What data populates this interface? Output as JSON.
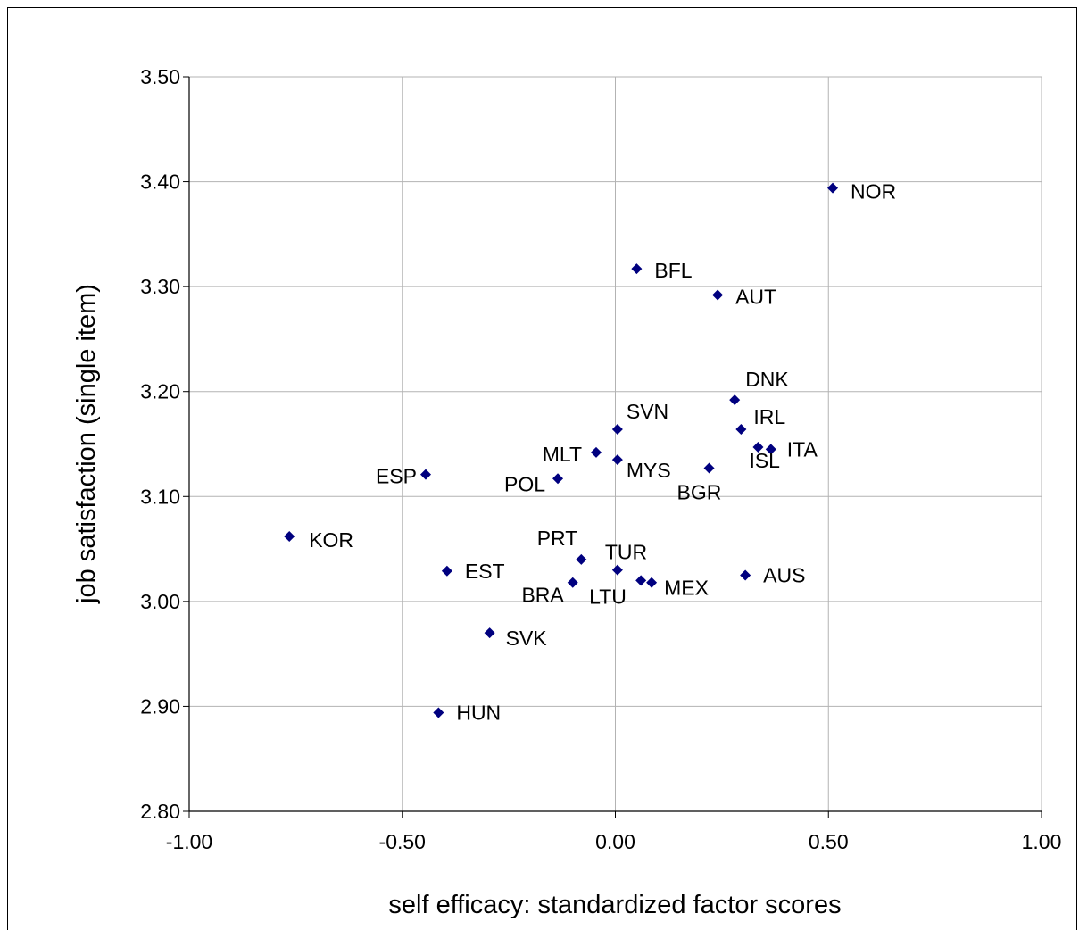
{
  "chart_data": {
    "type": "scatter",
    "xlabel": "self efficacy: standardized factor scores",
    "ylabel": "job satisfaction (single item)",
    "xlim": [
      -1.0,
      1.0
    ],
    "ylim": [
      2.8,
      3.5
    ],
    "x_ticks": [
      -1.0,
      -0.5,
      0.0,
      0.5,
      1.0
    ],
    "x_tick_labels": [
      "-1.00",
      "-0.50",
      "0.00",
      "0.50",
      "1.00"
    ],
    "y_ticks": [
      2.8,
      2.9,
      3.0,
      3.1,
      3.2,
      3.3,
      3.4,
      3.5
    ],
    "y_tick_labels": [
      "2.80",
      "2.90",
      "3.00",
      "3.10",
      "3.20",
      "3.30",
      "3.40",
      "3.50"
    ],
    "grid": true,
    "marker_color": "#00007F",
    "points": [
      {
        "label": "NOR",
        "x": 0.51,
        "y": 3.394
      },
      {
        "label": "BFL",
        "x": 0.05,
        "y": 3.317
      },
      {
        "label": "AUT",
        "x": 0.24,
        "y": 3.292
      },
      {
        "label": "DNK",
        "x": 0.28,
        "y": 3.192
      },
      {
        "label": "IRL",
        "x": 0.295,
        "y": 3.164
      },
      {
        "label": "ITA",
        "x": 0.365,
        "y": 3.145
      },
      {
        "label": "ISL",
        "x": 0.335,
        "y": 3.147
      },
      {
        "label": "BGR",
        "x": 0.22,
        "y": 3.127
      },
      {
        "label": "SVN",
        "x": 0.005,
        "y": 3.164
      },
      {
        "label": "MYS",
        "x": 0.005,
        "y": 3.135
      },
      {
        "label": "MLT",
        "x": -0.045,
        "y": 3.142
      },
      {
        "label": "POL",
        "x": -0.135,
        "y": 3.117
      },
      {
        "label": "ESP",
        "x": -0.445,
        "y": 3.121
      },
      {
        "label": "KOR",
        "x": -0.765,
        "y": 3.062
      },
      {
        "label": "PRT",
        "x": -0.08,
        "y": 3.04
      },
      {
        "label": "TUR",
        "x": 0.005,
        "y": 3.03
      },
      {
        "label": "BRA",
        "x": -0.1,
        "y": 3.018
      },
      {
        "label": "LTU",
        "x": 0.06,
        "y": 3.02
      },
      {
        "label": "MEX",
        "x": 0.085,
        "y": 3.018
      },
      {
        "label": "AUS",
        "x": 0.305,
        "y": 3.025
      },
      {
        "label": "EST",
        "x": -0.395,
        "y": 3.029
      },
      {
        "label": "SVK",
        "x": -0.295,
        "y": 2.97
      },
      {
        "label": "HUN",
        "x": -0.415,
        "y": 2.894
      }
    ]
  }
}
